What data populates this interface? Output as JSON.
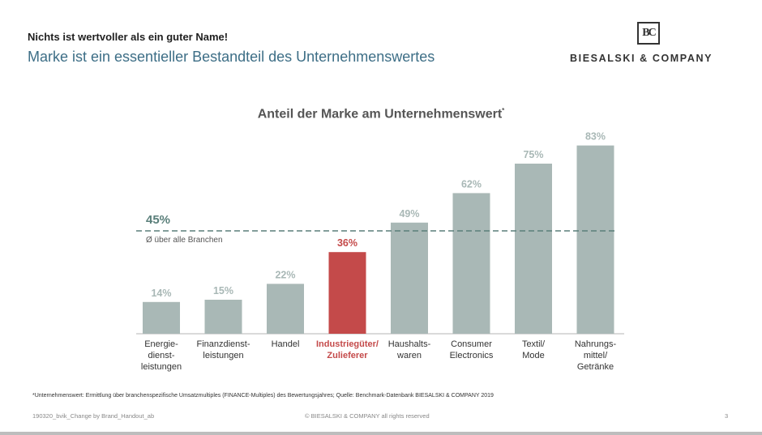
{
  "header": {
    "kicker": "Nichts ist wertvoller als ein guter Name!",
    "headline": "Marke ist ein essentieller Bestandteil des Unternehmenswertes"
  },
  "logo": {
    "mark": "BC",
    "name": "BIESALSKI & COMPANY"
  },
  "chart_data": {
    "type": "bar",
    "title": "Anteil der Marke am Unternehmenswert",
    "title_marker": "*",
    "categories": [
      [
        "Energie-",
        "dienst-",
        "leistungen"
      ],
      [
        "Finanzdienst-",
        "leistungen"
      ],
      [
        "Handel"
      ],
      [
        "Industriegüter/",
        "Zulieferer"
      ],
      [
        "Haushalts-",
        "waren"
      ],
      [
        "Consumer",
        "Electronics"
      ],
      [
        "Textil/",
        "Mode"
      ],
      [
        "Nahrungs-",
        "mittel/",
        "Getränke"
      ]
    ],
    "values": [
      14,
      15,
      22,
      36,
      49,
      62,
      75,
      83
    ],
    "value_labels": [
      "14%",
      "15%",
      "22%",
      "36%",
      "49%",
      "62%",
      "75%",
      "83%"
    ],
    "highlight_index": 3,
    "reference_line": {
      "value": 45,
      "label": "45%",
      "caption": "Ø über alle Branchen"
    },
    "ylim": [
      0,
      100
    ],
    "colors": {
      "bar": "#a9b8b6",
      "highlight": "#c44a4a",
      "label": "#a9b8b6",
      "reference": "#5a7f7a",
      "axis_text": "#333333"
    }
  },
  "footer": {
    "footnote": "*Unternehmenswert: Ermittlung über branchenspezifische Umsatzmultiples (FINANCE-Multiples) des Bewertungsjahres; Quelle: Benchmark-Datenbank BIESALSKI & COMPANY 2019",
    "doc_id": "190320_bvik_Change by Brand_Handout_ab",
    "copyright": "© BIESALSKI & COMPANY all rights reserved",
    "page": "3"
  }
}
